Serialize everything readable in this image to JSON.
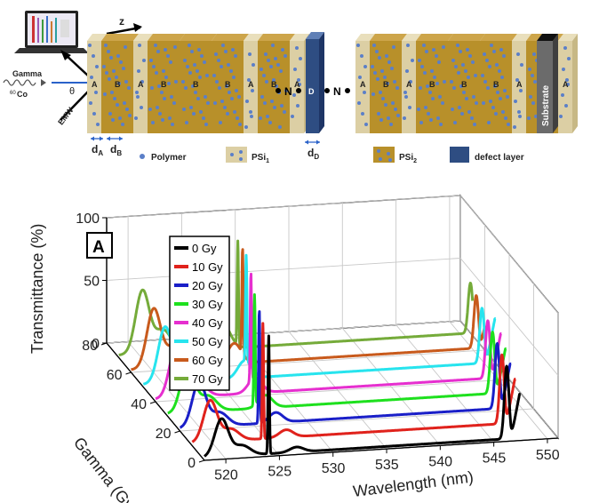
{
  "schematic": {
    "source_label": "Gamma",
    "source_isotope_mass": "60",
    "source_isotope_symbol": "Co",
    "angle_symbol": "θ",
    "emw_label": "EMW",
    "z_label": "z",
    "left_stack_layers": [
      "A",
      "B",
      "A",
      "B",
      "B",
      "B",
      "A",
      "B",
      "A"
    ],
    "right_stack_layers": [
      "A",
      "B",
      "A",
      "B",
      "B",
      "B",
      "A",
      "B",
      "A"
    ],
    "n_label": "N",
    "defect_label": "D",
    "substrate_label": "Substrate",
    "dim_a_base": "d",
    "dim_a_sub": "A",
    "dim_b_base": "d",
    "dim_b_sub": "B",
    "dim_d_base": "d",
    "dim_d_sub": "D",
    "legend_polymer": "Polymer",
    "legend_psi1_base": "PSi",
    "legend_psi1_sub": "1",
    "legend_psi2_base": "PSi",
    "legend_psi2_sub": "2",
    "legend_defect": "defect layer",
    "colors": {
      "psi1": "#dccfa4",
      "psi2": "#b8902a",
      "defect": "#2e4d82",
      "dot": "#5b7fc8",
      "substrate": "#6b6b6b"
    }
  },
  "chart_data": {
    "type": "line",
    "panel_label": "A",
    "xlabel": "Wavelength (nm)",
    "ylabel": "Gamma (Gy)",
    "zlabel": "Transmittance (%)",
    "xlim": [
      518,
      551
    ],
    "ylim": [
      0,
      80
    ],
    "zlim": [
      0,
      100
    ],
    "xticks": [
      520,
      525,
      530,
      535,
      540,
      545,
      550
    ],
    "yticks": [
      0,
      20,
      40,
      60,
      80
    ],
    "zticks": [
      0,
      50,
      100
    ],
    "grid": true,
    "legend_position": "top-left",
    "series": [
      {
        "name": "0 Gy",
        "gamma": 0,
        "color": "#000000",
        "defect_peak": {
          "wavelength": 524.0,
          "transmittance": 94
        },
        "edge_peak": {
          "wavelength": 546.2,
          "transmittance": 58
        }
      },
      {
        "name": "10 Gy",
        "gamma": 10,
        "color": "#e0221c",
        "defect_peak": {
          "wavelength": 524.6,
          "transmittance": 92
        },
        "edge_peak": {
          "wavelength": 546.9,
          "transmittance": 55
        }
      },
      {
        "name": "20 Gy",
        "gamma": 20,
        "color": "#1a1fc8",
        "defect_peak": {
          "wavelength": 525.4,
          "transmittance": 90
        },
        "edge_peak": {
          "wavelength": 547.6,
          "transmittance": 52
        }
      },
      {
        "name": "30 Gy",
        "gamma": 30,
        "color": "#1ee01e",
        "defect_peak": {
          "wavelength": 526.1,
          "transmittance": 88
        },
        "edge_peak": {
          "wavelength": 548.3,
          "transmittance": 49
        }
      },
      {
        "name": "40 Gy",
        "gamma": 40,
        "color": "#e62fcf",
        "defect_peak": {
          "wavelength": 526.9,
          "transmittance": 86
        },
        "edge_peak": {
          "wavelength": 549.0,
          "transmittance": 46
        }
      },
      {
        "name": "50 Gy",
        "gamma": 50,
        "color": "#27e4ee",
        "defect_peak": {
          "wavelength": 527.6,
          "transmittance": 85
        },
        "edge_peak": {
          "wavelength": 549.6,
          "transmittance": 44
        }
      },
      {
        "name": "60 Gy",
        "gamma": 60,
        "color": "#c85a1c",
        "defect_peak": {
          "wavelength": 528.4,
          "transmittance": 84
        },
        "edge_peak": {
          "wavelength": 550.2,
          "transmittance": 42
        }
      },
      {
        "name": "70 Gy",
        "gamma": 70,
        "color": "#75ab3a",
        "defect_peak": {
          "wavelength": 529.1,
          "transmittance": 83
        },
        "edge_peak": {
          "wavelength": 550.8,
          "transmittance": 40
        }
      }
    ]
  }
}
